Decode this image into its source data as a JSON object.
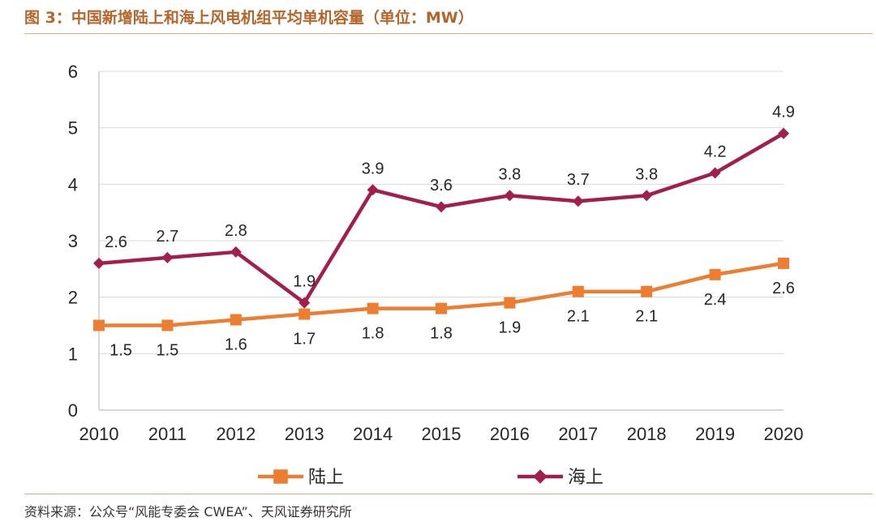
{
  "figure": {
    "title": "图 3：中国新增陆上和海上风电机组平均单机容量（单位：MW）",
    "source": "资料来源：公众号“风能专委会 CWEA”、天风证券研究所"
  },
  "chart_data": {
    "type": "line",
    "title": "图 3：中国新增陆上和海上风电机组平均单机容量（单位：MW）",
    "xlabel": "",
    "ylabel": "",
    "categories": [
      "2010",
      "2011",
      "2012",
      "2013",
      "2014",
      "2015",
      "2016",
      "2017",
      "2018",
      "2019",
      "2020"
    ],
    "ylim": [
      0,
      6
    ],
    "yticks": [
      "0",
      "1",
      "2",
      "3",
      "4",
      "5",
      "6"
    ],
    "grid": true,
    "legend_position": "bottom",
    "series": [
      {
        "name": "陆上",
        "color": "#ed7d31",
        "marker": "square",
        "label_position": "below",
        "values": [
          1.5,
          1.5,
          1.6,
          1.7,
          1.8,
          1.8,
          1.9,
          2.1,
          2.1,
          2.4,
          2.6
        ],
        "labels": [
          "1.5",
          "1.5",
          "1.6",
          "1.7",
          "1.8",
          "1.8",
          "1.9",
          "2.1",
          "2.1",
          "2.4",
          "2.6"
        ]
      },
      {
        "name": "海上",
        "color": "#a21f4b",
        "marker": "diamond",
        "label_position": "above",
        "values": [
          2.6,
          2.7,
          2.8,
          1.9,
          3.9,
          3.6,
          3.8,
          3.7,
          3.8,
          4.2,
          4.9
        ],
        "labels": [
          "2.6",
          "2.7",
          "2.8",
          "1.9",
          "3.9",
          "3.6",
          "3.8",
          "3.7",
          "3.8",
          "4.2",
          "4.9"
        ]
      }
    ]
  }
}
